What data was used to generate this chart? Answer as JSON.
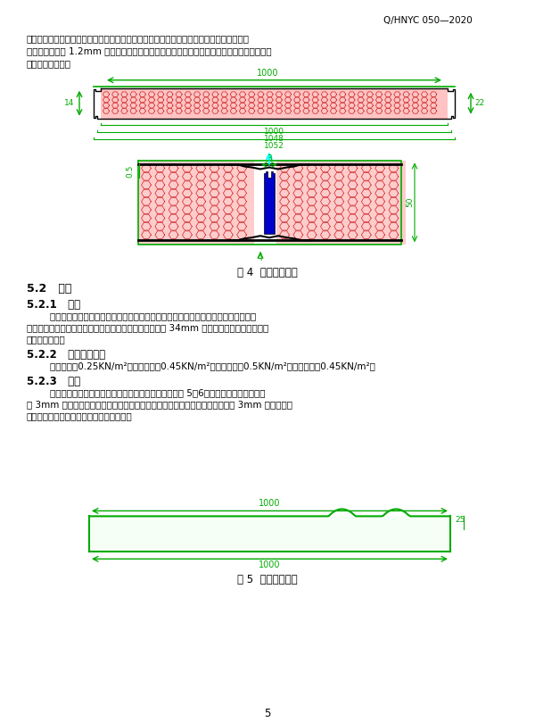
{
  "page_header": "Q/HNYC 050—2020",
  "para1": "转角墙板、墙板安装完毕后，地槽采用混凝土回封，回封位置要超过连接缝。墙板上部安装",
  "para1b": "顶槽，顶槽采用 1.2mm 厕热浸镁锌板折弯成型，顶槽安装前在墙板上部打发泡胶，确保墙板",
  "para1c": "与顶槽间无空隙。",
  "fig4_caption": "图 4  墙板及连接图",
  "sec52": "5.2   屋顶",
  "sec521": "5.2.1   材料",
  "para521": "        屋面金属面硬质聚氪央芯板（以下简称屋面板），使用与墙体材料质量、厚度等相同",
  "para521b": "的屋面板，涂层钉板内外不得接触，防止形成热桥。具有 34mm 以上的波峰和排水槽结构，",
  "para521c": "防水等级二级。",
  "sec522": "5.2.2   主要载荷要求",
  "para522": "        屋面恒荷：0.25KN/m²；基本风压：0.45KN/m²；屋面活荷：0.5KN/m²；基本雪压：0.45KN/m²。",
  "sec523": "5.2.3   安装",
  "para523": "        屋面板长度方向与烤房长度方向垂直。屋面板搭接如图 5、6，屋面板与屋面板搭接处",
  "para523b": "粘 3mm 丁基胶带，做防水处理，屋面板安装前要在墙板顶槽与屋面板搭接处粘 3mm 丁基胶带，",
  "para523c": "防止漏热，屋面板末端封橐并预留排水口。",
  "fig5_caption": "图 5  屋面板俧视图",
  "page_num": "5",
  "bg_color": "#ffffff",
  "text_color": "#000000",
  "green_color": "#00aa00",
  "red_color": "#cc2222",
  "blue_color": "#0000cc"
}
